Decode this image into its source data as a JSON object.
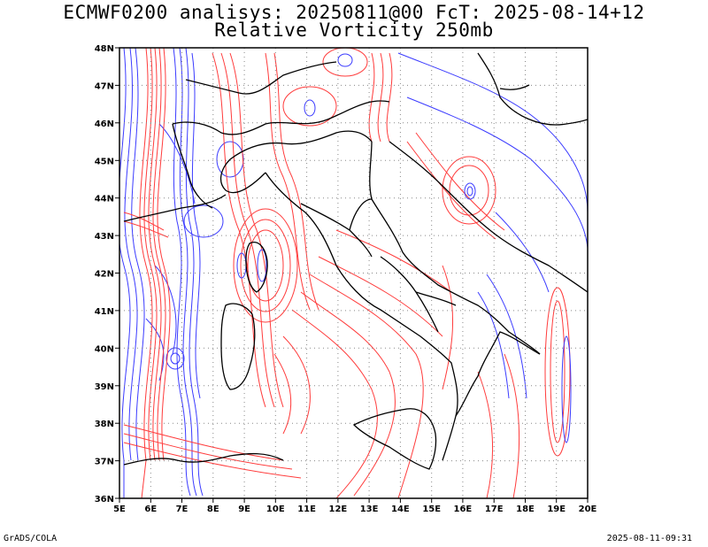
{
  "title": {
    "line1": "ECMWF0200 analisys: 20250811@00 FcT: 2025-08-14+12",
    "line2": "Relative Vorticity 250mb"
  },
  "axes": {
    "lon_labels": [
      "5E",
      "6E",
      "7E",
      "8E",
      "9E",
      "10E",
      "11E",
      "12E",
      "13E",
      "14E",
      "15E",
      "16E",
      "17E",
      "18E",
      "19E",
      "20E"
    ],
    "lat_labels": [
      "36N",
      "37N",
      "38N",
      "39N",
      "40N",
      "41N",
      "42N",
      "43N",
      "44N",
      "45N",
      "46N",
      "47N",
      "48N"
    ],
    "lon_range": [
      5,
      20
    ],
    "lat_range": [
      36,
      48
    ]
  },
  "colors": {
    "positive_vorticity": "#ff3b3b",
    "negative_vorticity": "#3b3bff",
    "coastline": "#000000",
    "grid": "#888888"
  },
  "footer": {
    "left": "GrADS/COLA",
    "right": "2025-08-11-09:31"
  }
}
